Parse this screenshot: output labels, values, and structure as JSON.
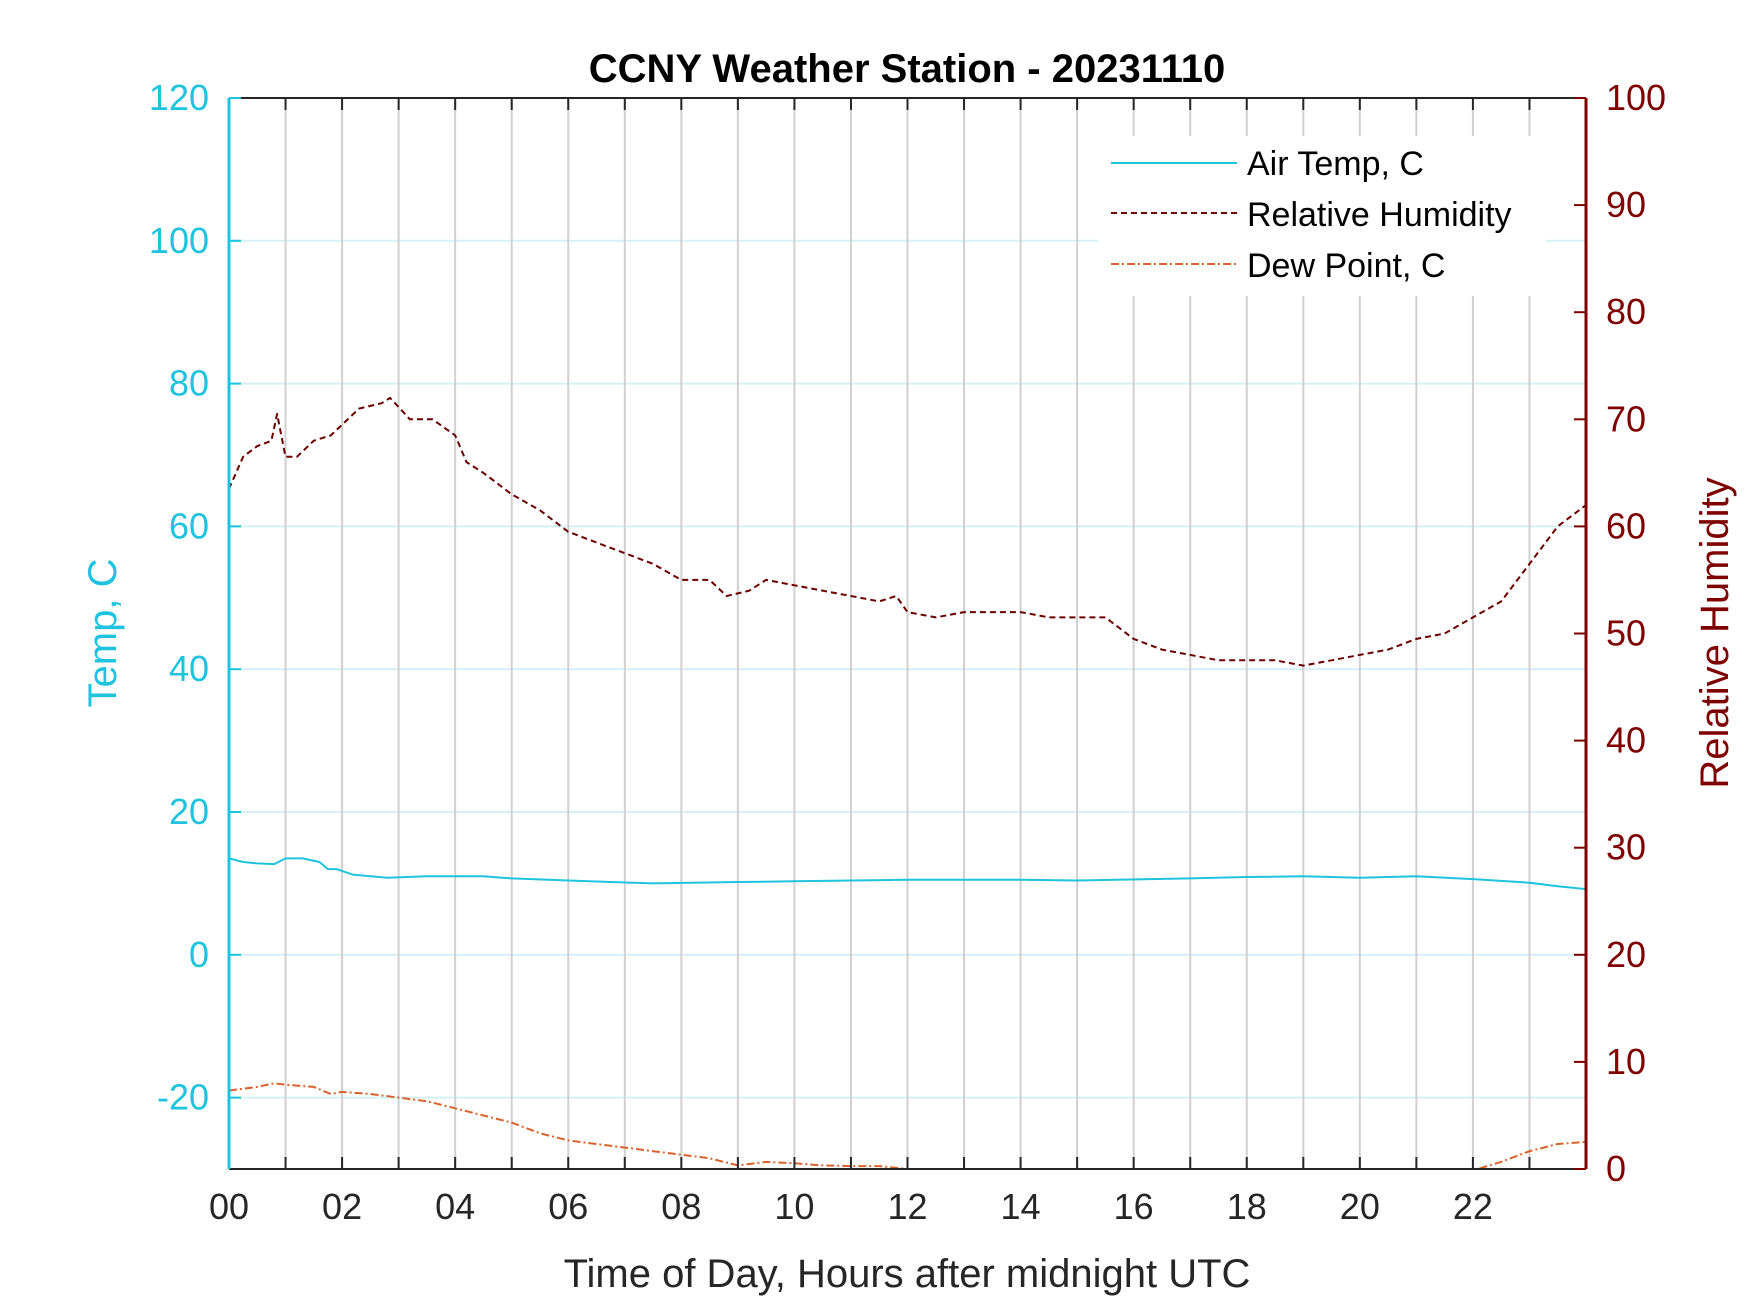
{
  "chart_data": {
    "type": "line",
    "title": "CCNY Weather Station - 20231110",
    "xlabel": "Time of Day, Hours after midnight UTC",
    "ylabel_left": "Temp, C",
    "ylabel_right": "Relative Humidity",
    "xlim": [
      0,
      24
    ],
    "ylim_left": [
      -30,
      120
    ],
    "ylim_right": [
      0,
      100
    ],
    "x_ticks": [
      0,
      2,
      4,
      6,
      8,
      10,
      12,
      14,
      16,
      18,
      20,
      22
    ],
    "x_tick_labels": [
      "00",
      "02",
      "04",
      "06",
      "08",
      "10",
      "12",
      "14",
      "16",
      "18",
      "20",
      "22"
    ],
    "y_left_ticks": [
      -20,
      0,
      20,
      40,
      60,
      80,
      100,
      120
    ],
    "y_left_tick_labels": [
      "-20",
      "0",
      "20",
      "40",
      "60",
      "80",
      "100",
      "120"
    ],
    "y_right_ticks": [
      0,
      10,
      20,
      30,
      40,
      50,
      60,
      70,
      80,
      90,
      100
    ],
    "y_right_tick_labels": [
      "0",
      "10",
      "20",
      "30",
      "40",
      "50",
      "60",
      "70",
      "80",
      "90",
      "100"
    ],
    "grid": true,
    "legend_position": "top-right",
    "colors": {
      "left_axis": "#1ec3de",
      "right_axis": "#7f0000",
      "air_temp": "#1ec3de",
      "relative_humidity": "#6b0000",
      "dew_point": "#d9622b",
      "grid_vertical": "#d0d0d0",
      "grid_horizontal": "#d5f1f6"
    },
    "series": [
      {
        "name": "Air Temp, C",
        "axis": "left",
        "style": "solid",
        "x": [
          0,
          0.25,
          0.5,
          0.8,
          1.0,
          1.3,
          1.6,
          1.75,
          1.9,
          2.2,
          2.8,
          3.5,
          4.0,
          4.5,
          5.0,
          6.0,
          7.5,
          9.0,
          10.0,
          12.0,
          14.0,
          15.0,
          17.0,
          18.0,
          19.0,
          20.0,
          21.0,
          22.0,
          23.0,
          23.5,
          24.0
        ],
        "y": [
          13.5,
          13.0,
          12.8,
          12.7,
          13.5,
          13.5,
          13.0,
          12.0,
          12.0,
          11.2,
          10.8,
          11.0,
          11.0,
          11.0,
          10.7,
          10.4,
          10.0,
          10.2,
          10.3,
          10.5,
          10.5,
          10.4,
          10.7,
          10.9,
          11.0,
          10.8,
          11.0,
          10.6,
          10.1,
          9.6,
          9.2
        ]
      },
      {
        "name": "Relative Humidity",
        "axis": "right",
        "style": "dashed",
        "x": [
          0,
          0.25,
          0.5,
          0.75,
          0.85,
          1.0,
          1.2,
          1.5,
          1.8,
          2.0,
          2.3,
          2.7,
          2.85,
          3.2,
          3.6,
          4.0,
          4.2,
          4.5,
          5.0,
          5.5,
          6.0,
          6.5,
          7.0,
          7.5,
          8.0,
          8.5,
          8.8,
          9.2,
          9.5,
          10.0,
          10.5,
          11.0,
          11.5,
          11.8,
          12.0,
          12.5,
          13.0,
          13.5,
          14.0,
          14.5,
          15.0,
          15.5,
          16.0,
          16.5,
          17.0,
          17.5,
          18.0,
          18.5,
          19.0,
          19.5,
          20.0,
          20.5,
          21.0,
          21.5,
          22.0,
          22.5,
          23.0,
          23.5,
          24.0
        ],
        "y": [
          63.5,
          66.5,
          67.5,
          68.0,
          70.5,
          66.5,
          66.5,
          68.0,
          68.5,
          69.5,
          71.0,
          71.5,
          72.0,
          70.0,
          70.0,
          68.5,
          66.0,
          65.0,
          63.0,
          61.5,
          59.5,
          58.5,
          57.5,
          56.5,
          55.0,
          55.0,
          53.5,
          54.0,
          55.0,
          54.5,
          54.0,
          53.5,
          53.0,
          53.5,
          52.0,
          51.5,
          52.0,
          52.0,
          52.0,
          51.5,
          51.5,
          51.5,
          49.5,
          48.5,
          48.0,
          47.5,
          47.5,
          47.5,
          47.0,
          47.5,
          48.0,
          48.5,
          49.5,
          50.0,
          51.5,
          53.0,
          56.5,
          60.0,
          62.0
        ]
      },
      {
        "name": "Dew Point, C",
        "axis": "left",
        "style": "dashdot",
        "x": [
          0,
          0.5,
          0.8,
          1.0,
          1.5,
          1.8,
          2.0,
          2.5,
          3.0,
          3.5,
          4.0,
          4.5,
          5.0,
          5.5,
          6.0,
          6.5,
          7.0,
          7.5,
          8.0,
          8.5,
          9.0,
          9.5,
          10.0,
          10.5,
          11.0,
          11.5,
          12.0,
          12.5,
          13.0,
          14.0,
          14.3,
          14.6,
          15.0,
          16.0,
          17.0,
          18.0,
          19.0,
          20.0,
          21.0,
          21.5,
          22.0,
          22.5,
          23.0,
          23.5,
          24.0
        ],
        "y": [
          -19.0,
          -18.5,
          -18.0,
          -18.2,
          -18.5,
          -19.5,
          -19.2,
          -19.5,
          -20.0,
          -20.5,
          -21.5,
          -22.5,
          -23.5,
          -25.0,
          -26.0,
          -26.5,
          -27.0,
          -27.5,
          -28.0,
          -28.5,
          -29.5,
          -29.0,
          -29.2,
          -29.5,
          -29.6,
          -29.6,
          -30.0,
          -30.2,
          -30.0,
          -30.3,
          -30.0,
          -30.3,
          -30.1,
          -31.0,
          -32.0,
          -32.5,
          -32.5,
          -32.0,
          -31.5,
          -31.0,
          -30.2,
          -29.0,
          -27.5,
          -26.5,
          -26.2
        ]
      }
    ]
  }
}
